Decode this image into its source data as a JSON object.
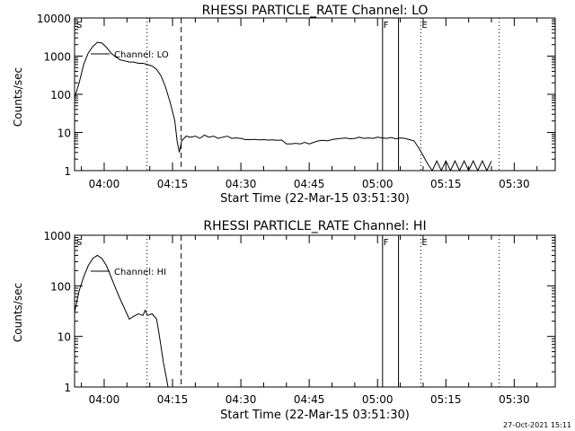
{
  "footer_timestamp": "27-Oct-2021 15:11",
  "chart_data": [
    {
      "type": "line",
      "title": "RHESSI PARTICLE_RATE Channel: LO",
      "ylabel": "Counts/sec",
      "xlabel": "Start Time (22-Mar-15 03:51:30)",
      "legend": "Channel: LO",
      "yscale": "log",
      "ylim": [
        1,
        10000
      ],
      "y_ticks": [
        "1",
        "10",
        "100",
        "1000",
        "10000"
      ],
      "xlim_minutes": [
        -6.5,
        99
      ],
      "x_ticks": [
        {
          "label": "04:00",
          "min": 0
        },
        {
          "label": "04:15",
          "min": 15
        },
        {
          "label": "04:30",
          "min": 30
        },
        {
          "label": "04:45",
          "min": 45
        },
        {
          "label": "05:00",
          "min": 60
        },
        {
          "label": "05:15",
          "min": 75
        },
        {
          "label": "05:30",
          "min": 90
        }
      ],
      "markers": [
        {
          "label": "S",
          "min": -6.3,
          "style": "none"
        },
        {
          "label": "",
          "min": 9.4,
          "style": "dotted"
        },
        {
          "label": "",
          "min": 16.9,
          "style": "dashed"
        },
        {
          "label": "F",
          "min": 61.1,
          "style": "solid"
        },
        {
          "label": "",
          "min": 64.6,
          "style": "solid"
        },
        {
          "label": "E",
          "min": 69.5,
          "style": "dotted"
        },
        {
          "label": "",
          "min": 86.7,
          "style": "dotted"
        }
      ],
      "series": [
        {
          "x": [
            -6.5,
            -5.5,
            -4.5,
            -3.5,
            -2.5,
            -1.5,
            -0.5,
            0.5,
            1.5,
            2.5,
            3.5,
            4.5,
            5.5,
            6.5,
            7.5,
            8.5,
            9.5,
            10.5,
            11.5,
            12.5,
            13.5,
            14.5,
            15.5,
            16,
            16.5,
            17,
            18,
            19,
            20,
            21,
            22,
            23,
            24,
            25,
            26,
            27,
            28,
            29,
            30,
            31,
            32,
            33,
            34,
            35,
            36,
            37,
            38,
            39,
            40,
            41,
            42,
            43,
            44,
            45,
            46,
            47,
            48,
            49,
            50,
            51,
            52,
            53,
            54,
            55,
            56,
            57,
            58,
            59,
            60,
            61,
            62,
            63,
            64,
            65,
            66,
            67,
            68,
            69,
            70,
            71,
            72,
            73,
            74,
            75,
            76,
            77,
            78,
            79,
            80,
            81,
            82,
            83,
            84,
            85
          ],
          "y": [
            80,
            200,
            600,
            1200,
            1800,
            2300,
            2200,
            1700,
            1200,
            950,
            800,
            750,
            700,
            700,
            650,
            650,
            600,
            550,
            450,
            300,
            150,
            60,
            20,
            6,
            3,
            6,
            8,
            7.5,
            8,
            7,
            8.5,
            7.5,
            8,
            7,
            7.5,
            8,
            7,
            7.2,
            7,
            6.5,
            6.5,
            6.6,
            6.4,
            6.5,
            6.3,
            6.4,
            6.2,
            6.3,
            5,
            5,
            5.2,
            5,
            5.5,
            5,
            5.5,
            6,
            6.2,
            6,
            6.5,
            6.8,
            7,
            7.2,
            6.8,
            7,
            7.5,
            7,
            7.2,
            7,
            7.5,
            7.2,
            7,
            7.4,
            6.8,
            7.2,
            7,
            6.5,
            6,
            4,
            2.5,
            1.5,
            1,
            1.8,
            1,
            1.8,
            1,
            1.8,
            1,
            1.8,
            1,
            1.8,
            1,
            1.8,
            1,
            1.8
          ]
        }
      ]
    },
    {
      "type": "line",
      "title": "RHESSI PARTICLE_RATE Channel: HI",
      "ylabel": "Counts/sec",
      "xlabel": "Start Time (22-Mar-15 03:51:30)",
      "legend": "Channel: HI",
      "yscale": "log",
      "ylim": [
        1,
        1000
      ],
      "y_ticks": [
        "1",
        "10",
        "100",
        "1000"
      ],
      "xlim_minutes": [
        -6.5,
        99
      ],
      "x_ticks": [
        {
          "label": "04:00",
          "min": 0
        },
        {
          "label": "04:15",
          "min": 15
        },
        {
          "label": "04:30",
          "min": 30
        },
        {
          "label": "04:45",
          "min": 45
        },
        {
          "label": "05:00",
          "min": 60
        },
        {
          "label": "05:15",
          "min": 75
        },
        {
          "label": "05:30",
          "min": 90
        }
      ],
      "markers": [
        {
          "label": "S",
          "min": -6.3,
          "style": "none"
        },
        {
          "label": "",
          "min": 9.4,
          "style": "dotted"
        },
        {
          "label": "",
          "min": 16.9,
          "style": "dashed"
        },
        {
          "label": "F",
          "min": 61.1,
          "style": "solid"
        },
        {
          "label": "",
          "min": 64.6,
          "style": "solid"
        },
        {
          "label": "E",
          "min": 69.5,
          "style": "dotted"
        },
        {
          "label": "",
          "min": 86.7,
          "style": "dotted"
        }
      ],
      "series": [
        {
          "x": [
            -6.5,
            -5.5,
            -4.5,
            -3.5,
            -2.5,
            -1.5,
            -0.5,
            0.5,
            1.5,
            2.5,
            3.5,
            4.5,
            5.5,
            6.5,
            7.5,
            8.5,
            9,
            9.5,
            10.5,
            11.5,
            12,
            12.5,
            13,
            13.5,
            14
          ],
          "y": [
            30,
            80,
            150,
            250,
            350,
            400,
            350,
            250,
            150,
            90,
            55,
            35,
            22,
            25,
            28,
            26,
            33,
            26,
            28,
            22,
            12,
            6,
            3,
            1.8,
            1
          ]
        }
      ]
    }
  ]
}
